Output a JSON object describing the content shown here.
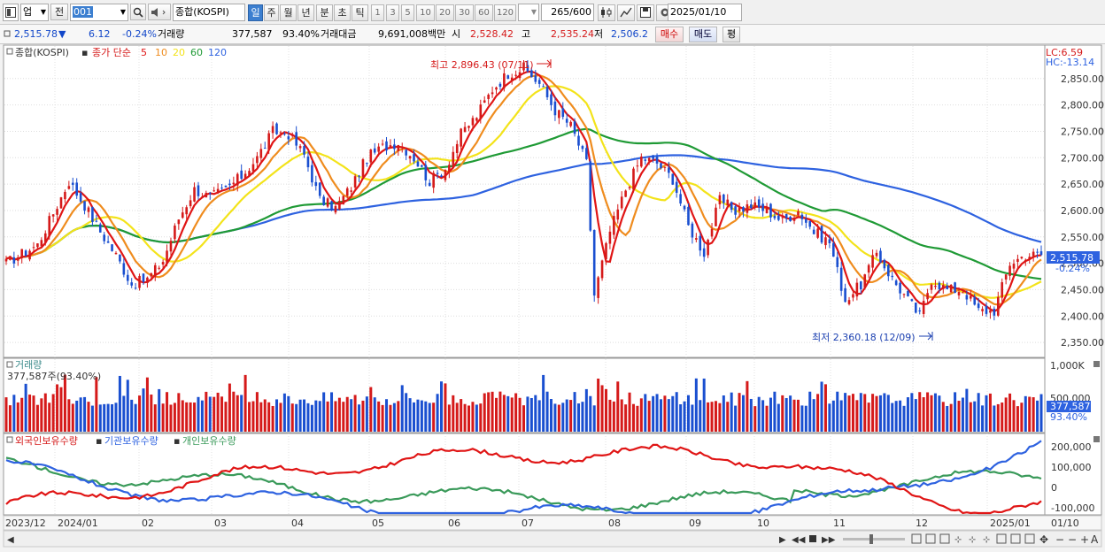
{
  "toolbar": {
    "market": "업",
    "prev_label": "전",
    "code": "001",
    "name": "종합(KOSPI)",
    "periods": [
      "일",
      "주",
      "월",
      "년",
      "분",
      "초",
      "틱"
    ],
    "active_period": "일",
    "minutes": [
      "1",
      "3",
      "5",
      "10",
      "20",
      "30",
      "60",
      "120"
    ],
    "count": "265",
    "count_total": "/600",
    "date": "2025/01/10"
  },
  "quote": {
    "price": "2,515.78",
    "direction": "▼",
    "change": "6.12",
    "change_pct": "-0.24%",
    "volume_label": "거래량",
    "volume": "377,587",
    "volume_ratio": "93.40%",
    "amount_label": "거래대금",
    "amount": "9,691,008백만",
    "open_label": "시",
    "open": "2,528.42",
    "high_label": "고",
    "high": "2,535.24",
    "low_label": "저",
    "low": "2,506.2",
    "buy_label": "매수",
    "sell_label": "매도",
    "eval_label": "평"
  },
  "colors": {
    "up": "#d51a1a",
    "down": "#1a4fd0",
    "ma5": "#e01515",
    "ma10": "#ef8c1e",
    "ma20": "#f3e31a",
    "ma60": "#1f9a35",
    "ma120": "#2e62e0",
    "foreign": "#e01515",
    "institution": "#2e62e0",
    "individual": "#3a9a5a"
  },
  "chart_data": [
    {
      "type": "candlestick",
      "title": "종합(KOSPI)",
      "legend": {
        "prefix": "종가 단순",
        "periods": [
          "5",
          "10",
          "20",
          "60",
          "120"
        ]
      },
      "lc_label": "LC:6.59",
      "hc_label": "HC:-13.14",
      "y_ticks": [
        "2,850.00",
        "2,800.00",
        "2,750.00",
        "2,700.00",
        "2,650.00",
        "2,600.00",
        "2,550.00",
        "2,500.00",
        "2,450.00",
        "2,400.00",
        "2,350.00"
      ],
      "ylim": [
        2325,
        2905
      ],
      "max_annotation": "최고 2,896.43 (07/11)",
      "min_annotation": "최저 2,360.18 (12/09)",
      "current_price": "2,515.78",
      "current_change": "-0.24%",
      "close_path": [
        [
          0,
          2500
        ],
        [
          4,
          2518
        ],
        [
          8,
          2535
        ],
        [
          12,
          2595
        ],
        [
          16,
          2655
        ],
        [
          20,
          2610
        ],
        [
          24,
          2560
        ],
        [
          28,
          2515
        ],
        [
          32,
          2460
        ],
        [
          36,
          2470
        ],
        [
          40,
          2505
        ],
        [
          44,
          2585
        ],
        [
          48,
          2640
        ],
        [
          52,
          2625
        ],
        [
          56,
          2640
        ],
        [
          60,
          2665
        ],
        [
          64,
          2700
        ],
        [
          68,
          2750
        ],
        [
          72,
          2745
        ],
        [
          76,
          2705
        ],
        [
          80,
          2620
        ],
        [
          84,
          2605
        ],
        [
          88,
          2645
        ],
        [
          92,
          2700
        ],
        [
          96,
          2720
        ],
        [
          100,
          2730
        ],
        [
          104,
          2700
        ],
        [
          108,
          2655
        ],
        [
          112,
          2680
        ],
        [
          116,
          2745
        ],
        [
          120,
          2780
        ],
        [
          124,
          2830
        ],
        [
          128,
          2860
        ],
        [
          132,
          2870
        ],
        [
          136,
          2840
        ],
        [
          140,
          2790
        ],
        [
          144,
          2760
        ],
        [
          148,
          2690
        ],
        [
          150,
          2440
        ],
        [
          154,
          2560
        ],
        [
          158,
          2640
        ],
        [
          162,
          2700
        ],
        [
          166,
          2690
        ],
        [
          170,
          2660
        ],
        [
          174,
          2570
        ],
        [
          178,
          2520
        ],
        [
          182,
          2620
        ],
        [
          186,
          2600
        ],
        [
          190,
          2610
        ],
        [
          194,
          2600
        ],
        [
          198,
          2580
        ],
        [
          202,
          2600
        ],
        [
          206,
          2560
        ],
        [
          210,
          2540
        ],
        [
          214,
          2430
        ],
        [
          218,
          2460
        ],
        [
          222,
          2520
        ],
        [
          226,
          2470
        ],
        [
          230,
          2430
        ],
        [
          233,
          2400
        ],
        [
          236,
          2470
        ],
        [
          240,
          2450
        ],
        [
          244,
          2450
        ],
        [
          248,
          2410
        ],
        [
          252,
          2410
        ],
        [
          256,
          2500
        ],
        [
          260,
          2515.78
        ]
      ]
    },
    {
      "type": "bar",
      "title": "거래량",
      "subtitle": "377,587주(93.40%)",
      "y_ticks": [
        "1,000K",
        "500,000"
      ],
      "current_value": "377,587",
      "current_ratio": "93.40%"
    },
    {
      "type": "line",
      "legend": [
        "외국인보유수량",
        "기관보유수량",
        "개인보유수량"
      ],
      "y_ticks": [
        "200,000",
        "100,000",
        "0",
        "-100,000"
      ]
    }
  ],
  "time_axis": {
    "labels": [
      "2023/12",
      "2024/01",
      "02",
      "03",
      "04",
      "05",
      "06",
      "07",
      "08",
      "09",
      "10",
      "11",
      "12",
      "2025/01",
      "01/10"
    ]
  }
}
